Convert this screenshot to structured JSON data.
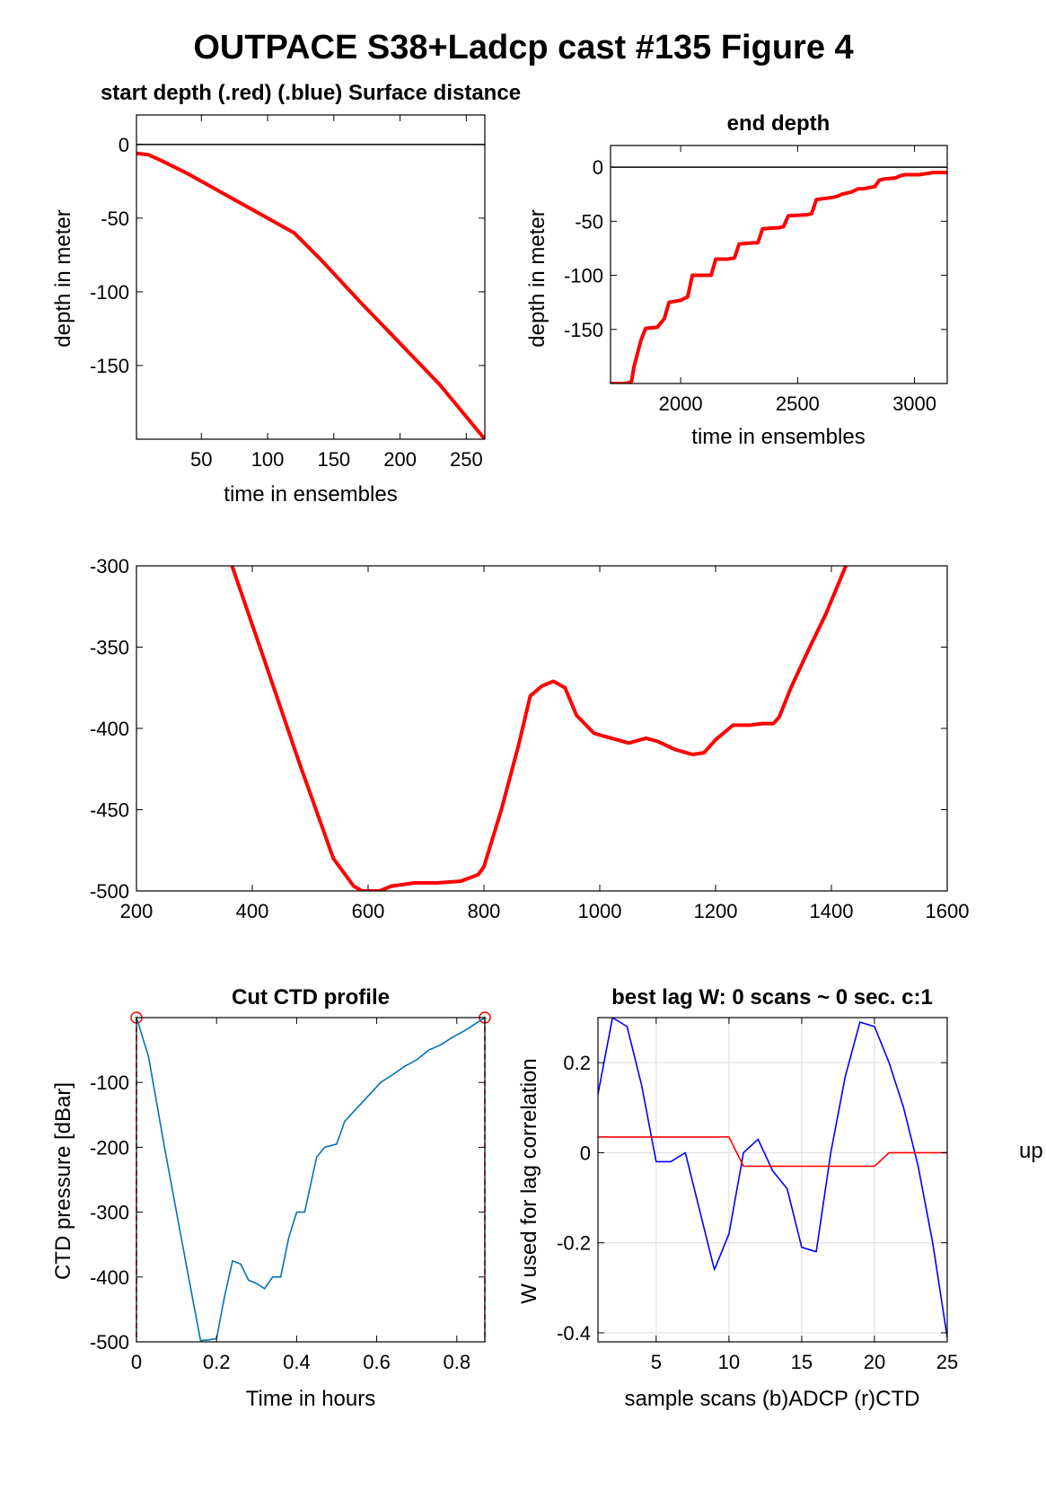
{
  "figure": {
    "title": "OUTPACE S38+Ladcp cast #135   Figure 4",
    "side_text": "up"
  },
  "chart_data": [
    {
      "id": "start_depth",
      "type": "line",
      "title": "start depth (.red) (.blue) Surface distance",
      "xlabel": "time in ensembles",
      "ylabel": "depth in meter",
      "xlim": [
        1,
        264
      ],
      "ylim": [
        -200,
        20
      ],
      "xticks": [
        50,
        100,
        150,
        200,
        250
      ],
      "yticks": [
        0,
        -50,
        -100,
        -150
      ],
      "grid": false,
      "reference_line": {
        "y": 0,
        "color": "#000000"
      },
      "series": [
        {
          "color": "#ff0000",
          "x": [
            1,
            10,
            20,
            40,
            70,
            100,
            120,
            140,
            170,
            200,
            230,
            264
          ],
          "y": [
            -6,
            -7,
            -11,
            -20,
            -35,
            -50,
            -60,
            -78,
            -107,
            -135,
            -163,
            -200
          ]
        }
      ]
    },
    {
      "id": "end_depth",
      "type": "line",
      "title": "end depth",
      "xlabel": "time in ensembles",
      "ylabel": "depth in meter",
      "xlim": [
        1700,
        3140
      ],
      "ylim": [
        -200,
        20
      ],
      "xticks": [
        2000,
        2500,
        3000
      ],
      "yticks": [
        0,
        -50,
        -100,
        -150
      ],
      "grid": false,
      "reference_line": {
        "y": 0,
        "color": "#000000"
      },
      "series": [
        {
          "color": "#ff0000",
          "x": [
            1700,
            1770,
            1790,
            1800,
            1830,
            1850,
            1900,
            1930,
            1950,
            2000,
            2030,
            2050,
            2100,
            2130,
            2150,
            2200,
            2230,
            2250,
            2310,
            2330,
            2350,
            2420,
            2440,
            2460,
            2540,
            2560,
            2580,
            2650,
            2670,
            2690,
            2730,
            2760,
            2780,
            2830,
            2850,
            2870,
            2920,
            2940,
            2960,
            3020,
            3050,
            3080,
            3110,
            3140
          ],
          "y": [
            -200,
            -200,
            -198,
            -185,
            -160,
            -149,
            -148,
            -140,
            -125,
            -123,
            -120,
            -100,
            -100,
            -100,
            -85,
            -85,
            -84,
            -71,
            -70,
            -70,
            -57,
            -56,
            -55,
            -45,
            -44,
            -43,
            -30,
            -28,
            -27,
            -25,
            -23,
            -20,
            -20,
            -18,
            -12,
            -11,
            -10,
            -8,
            -7,
            -7,
            -6,
            -5,
            -5,
            -5
          ]
        }
      ]
    },
    {
      "id": "middle",
      "type": "line",
      "title": "",
      "xlabel": "",
      "ylabel": "",
      "xlim": [
        200,
        1600
      ],
      "ylim": [
        -500,
        -300
      ],
      "xticks": [
        200,
        400,
        600,
        800,
        1000,
        1200,
        1400,
        1600
      ],
      "yticks": [
        -300,
        -350,
        -400,
        -450,
        -500
      ],
      "grid": false,
      "series": [
        {
          "color": "#ff0000",
          "x": [
            365,
            420,
            480,
            540,
            575,
            590,
            605,
            620,
            640,
            660,
            680,
            720,
            760,
            790,
            800,
            830,
            860,
            880,
            900,
            920,
            940,
            960,
            990,
            1020,
            1050,
            1080,
            1100,
            1130,
            1160,
            1180,
            1200,
            1230,
            1260,
            1280,
            1300,
            1310,
            1330,
            1360,
            1390,
            1425
          ],
          "y": [
            -300,
            -357,
            -420,
            -480,
            -497,
            -500,
            -500,
            -500,
            -497,
            -496,
            -495,
            -495,
            -494,
            -490,
            -485,
            -450,
            -410,
            -380,
            -374,
            -371,
            -375,
            -392,
            -403,
            -406,
            -409,
            -406,
            -408,
            -413,
            -416,
            -415,
            -407,
            -398,
            -398,
            -397,
            -397,
            -393,
            -375,
            -352,
            -330,
            -300
          ]
        }
      ]
    },
    {
      "id": "cut_ctd_profile",
      "type": "line",
      "title": "Cut CTD profile",
      "xlabel": "Time in hours",
      "ylabel": "CTD pressure [dBar]",
      "xlim": [
        0,
        0.87
      ],
      "ylim": [
        -500,
        0
      ],
      "xticks": [
        0,
        0.2,
        0.4,
        0.6,
        0.8
      ],
      "ytick_labels": [
        "-100",
        "-200",
        "-300",
        "-400",
        "-500"
      ],
      "yticks": [
        -100,
        -200,
        -300,
        -400,
        -500
      ],
      "grid": false,
      "cut_markers": {
        "x": [
          0,
          0.87
        ],
        "color": "#ff0000",
        "marker_color": "#00aa00"
      },
      "series": [
        {
          "color": "#0072bd",
          "x": [
            0,
            0.03,
            0.07,
            0.1,
            0.13,
            0.16,
            0.18,
            0.2,
            0.22,
            0.24,
            0.26,
            0.28,
            0.3,
            0.32,
            0.34,
            0.36,
            0.38,
            0.4,
            0.42,
            0.45,
            0.47,
            0.5,
            0.52,
            0.55,
            0.58,
            0.61,
            0.64,
            0.67,
            0.7,
            0.73,
            0.76,
            0.79,
            0.82,
            0.85,
            0.87
          ],
          "y": [
            0,
            -60,
            -200,
            -300,
            -400,
            -498,
            -497,
            -495,
            -430,
            -375,
            -380,
            -405,
            -410,
            -418,
            -400,
            -400,
            -340,
            -300,
            -300,
            -215,
            -200,
            -195,
            -160,
            -140,
            -120,
            -100,
            -88,
            -75,
            -65,
            -50,
            -42,
            -30,
            -20,
            -8,
            0
          ]
        }
      ]
    },
    {
      "id": "best_lag",
      "type": "line",
      "title": "best lag W: 0 scans ~ 0 sec.  c:1",
      "xlabel": "sample scans (b)ADCP (r)CTD",
      "ylabel": "W used for lag correlation",
      "xlim": [
        1,
        25
      ],
      "ylim": [
        -0.42,
        0.3
      ],
      "xticks": [
        5,
        10,
        15,
        20,
        25
      ],
      "yticks": [
        0.2,
        0,
        -0.2,
        -0.4
      ],
      "grid": true,
      "series": [
        {
          "color": "#0000ff",
          "x": [
            1,
            2,
            3,
            4,
            5,
            6,
            7,
            8,
            9,
            10,
            11,
            12,
            13,
            14,
            15,
            16,
            17,
            18,
            19,
            20,
            21,
            22,
            23,
            24,
            25
          ],
          "y": [
            0.13,
            0.3,
            0.28,
            0.15,
            -0.02,
            -0.02,
            0.0,
            -0.13,
            -0.26,
            -0.18,
            0.0,
            0.03,
            -0.04,
            -0.08,
            -0.21,
            -0.22,
            0.0,
            0.17,
            0.29,
            0.28,
            0.2,
            0.1,
            -0.03,
            -0.2,
            -0.41
          ]
        },
        {
          "color": "#ff0000",
          "x": [
            1,
            2,
            3,
            4,
            5,
            6,
            7,
            8,
            9,
            10,
            11,
            12,
            13,
            14,
            15,
            16,
            17,
            18,
            19,
            20,
            21,
            22,
            23,
            24,
            25
          ],
          "y": [
            0.035,
            0.035,
            0.035,
            0.035,
            0.035,
            0.035,
            0.035,
            0.035,
            0.035,
            0.035,
            -0.03,
            -0.03,
            -0.03,
            -0.03,
            -0.03,
            -0.03,
            -0.03,
            -0.03,
            -0.03,
            -0.03,
            0.0,
            0.0,
            0.0,
            0.0,
            0.0
          ]
        }
      ]
    }
  ]
}
